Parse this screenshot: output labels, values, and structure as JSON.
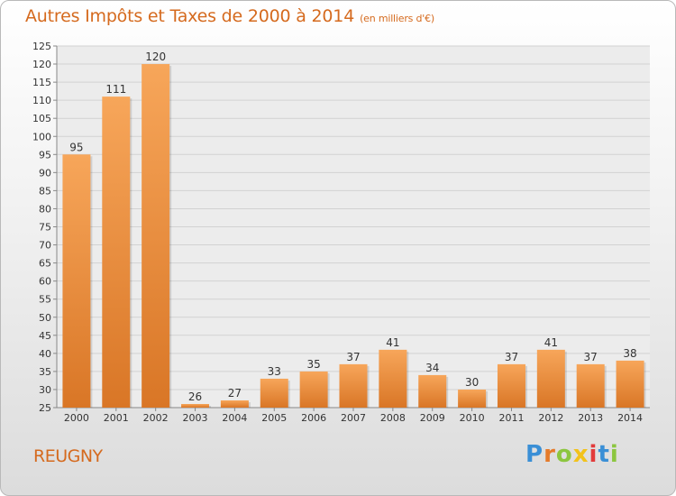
{
  "header": {
    "title": "Autres Impôts et Taxes de 2000 à 2014",
    "subtitle": "(en milliers d'€)"
  },
  "footer": {
    "commune": "REUGNY",
    "logo_letters": [
      "P",
      "r",
      "o",
      "x",
      "i",
      "t",
      "i"
    ]
  },
  "colors": {
    "accent": "#d56a1e",
    "bar_light": "#f7a65a",
    "bar_dark": "#d97626"
  },
  "chart_data": {
    "type": "bar",
    "title": "Autres Impôts et Taxes de 2000 à 2014",
    "subtitle": "(en milliers d'€)",
    "categories": [
      "2000",
      "2001",
      "2002",
      "2003",
      "2004",
      "2005",
      "2006",
      "2007",
      "2008",
      "2009",
      "2010",
      "2011",
      "2012",
      "2013",
      "2014"
    ],
    "values": [
      95,
      111,
      120,
      26,
      27,
      33,
      35,
      37,
      41,
      34,
      30,
      37,
      41,
      37,
      38
    ],
    "ylim": [
      25,
      125
    ],
    "yticks": [
      25,
      30,
      35,
      40,
      45,
      50,
      55,
      60,
      65,
      70,
      75,
      80,
      85,
      90,
      95,
      100,
      105,
      110,
      115,
      120,
      125
    ],
    "xlabel": "",
    "ylabel": "",
    "grid": true,
    "data_labels": true
  }
}
